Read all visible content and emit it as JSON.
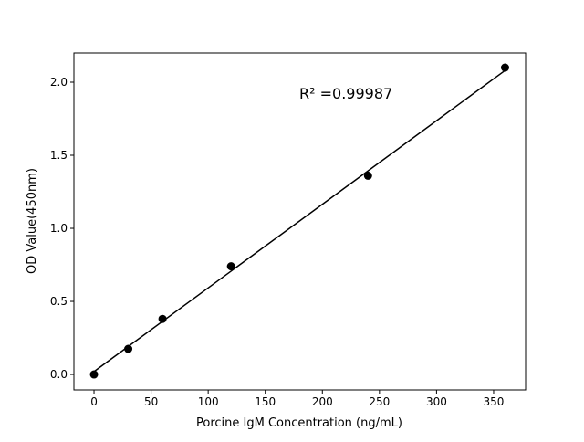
{
  "chart_data": {
    "type": "scatter",
    "title": "",
    "xlabel": "Porcine IgM Concentration (ng/mL)",
    "ylabel": "OD Value(450nm)",
    "xlim": [
      -17.6,
      378
    ],
    "ylim": [
      -0.106,
      2.2
    ],
    "xticks": [
      0,
      50,
      100,
      150,
      200,
      250,
      300,
      350
    ],
    "yticks": [
      "0.0",
      "0.5",
      "1.0",
      "1.5",
      "2.0"
    ],
    "grid": false,
    "color": "#000000",
    "series": [
      {
        "x": [
          0,
          30,
          60,
          120,
          240,
          360
        ],
        "y": [
          0.0,
          0.175,
          0.38,
          0.74,
          1.36,
          2.1
        ]
      }
    ],
    "fit_line": {
      "x": [
        0,
        360
      ],
      "y": [
        0.02,
        2.08
      ]
    },
    "annotation": "R² =0.99987"
  }
}
